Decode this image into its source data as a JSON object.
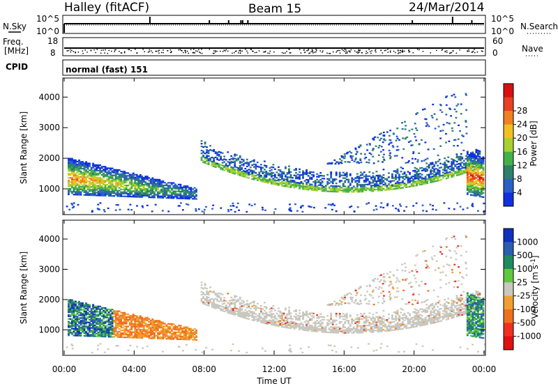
{
  "header": {
    "station": "Halley (fitACF)",
    "beam": "Beam 15",
    "date": "24/Mar/2014"
  },
  "sky_panel": {
    "left_label": "N.Sky",
    "right_label": "N.Search",
    "ticks_left": [
      "10^5",
      "10^0"
    ],
    "ticks_right": [
      "10^5",
      "10^0"
    ]
  },
  "freq_panel": {
    "left_label_1": "Freq.",
    "left_label_2": "[MHz]",
    "right_label": "Nave",
    "ticks_left": [
      "18",
      "8"
    ],
    "ticks_right": [
      "60",
      "0"
    ]
  },
  "cpid_panel": {
    "label": "CPID",
    "mode": "normal (fast) 151"
  },
  "colors": {
    "frame": "#000000",
    "ground_scatter": "#c8c8c0"
  },
  "chart_data": [
    {
      "type": "heatmap",
      "name": "power",
      "ylabel": "Slant Range [km]",
      "yticks": [
        1000,
        2000,
        3000,
        4000
      ],
      "ylim": [
        180,
        4600
      ],
      "xlim": [
        0,
        24
      ],
      "colorbar": {
        "label": "Power [dB]",
        "ticks": [
          "4",
          "8",
          "12",
          "16",
          "20",
          "24",
          "28"
        ],
        "colors": [
          "#1030e0",
          "#2a5fc8",
          "#2e7f6c",
          "#45b04a",
          "#a8d030",
          "#f0c020",
          "#f08020",
          "#e84020",
          "#d81010"
        ]
      },
      "bands": [
        {
          "name": "morning-echo",
          "t0": 0.2,
          "t1": 7.5,
          "r0_start": 800,
          "r0_end": 650,
          "r1_start": 2000,
          "r1_end": 1000,
          "intensity": 0.8
        },
        {
          "name": "evening-arc",
          "t0": 7.8,
          "t1": 23.8,
          "r0_start": 1800,
          "r0_end": 1000,
          "r1_start": 2500,
          "r1_end": 1900,
          "intensity": 0.35
        },
        {
          "name": "late-echo",
          "t0": 23.0,
          "t1": 24.0,
          "r0_start": 800,
          "r0_end": 700,
          "r1_start": 2200,
          "r1_end": 2000,
          "intensity": 0.9
        }
      ]
    },
    {
      "type": "heatmap",
      "name": "velocity",
      "ylabel": "Slant Range [km]",
      "xlabel": "Time UT",
      "yticks": [
        1000,
        2000,
        3000,
        4000
      ],
      "ylim": [
        180,
        4600
      ],
      "xlim": [
        0,
        24
      ],
      "xticks": [
        "00:00",
        "04:00",
        "08:00",
        "12:00",
        "16:00",
        "20:00",
        "00:00"
      ],
      "colorbar": {
        "label": "Velocity [m s-1]",
        "ticks": [
          "1000",
          "500",
          "100",
          "25",
          "-25",
          "-100",
          "-500",
          "-1000"
        ],
        "colors": [
          "#1030c0",
          "#2a5fb0",
          "#1e8a60",
          "#60c840",
          "#c8c8c0",
          "#f0a030",
          "#f07020",
          "#f03020",
          "#e01010"
        ]
      }
    }
  ]
}
